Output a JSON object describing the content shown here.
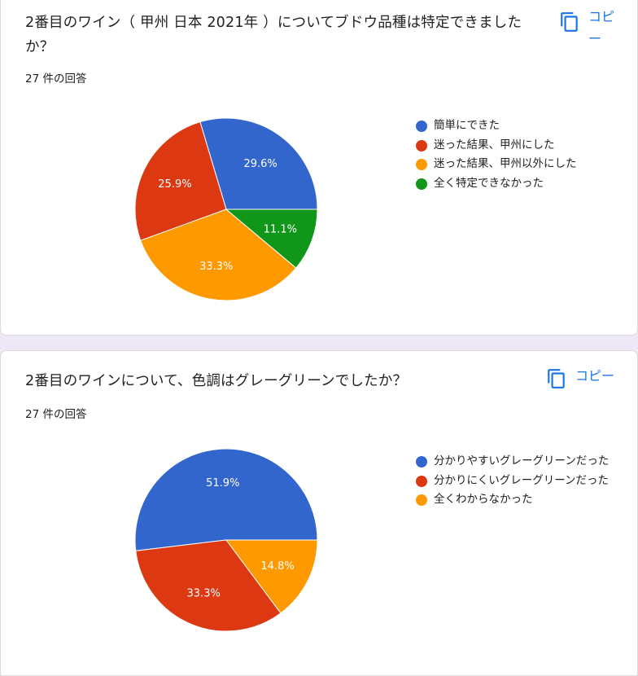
{
  "cards": [
    {
      "title": "2番目のワイン（ 甲州 日本 2021年 ）についてブドウ品種は特定できましたか？",
      "response_count": "27 件の回答",
      "copy_label": "コピー"
    },
    {
      "title": "2番目のワインについて、色調はグレーグリーンでしたか？",
      "response_count": "27 件の回答",
      "copy_label": "コピー"
    }
  ],
  "icons": {
    "copy": "copy-icon"
  },
  "chart_data": [
    {
      "type": "pie",
      "title": "",
      "categories": [
        "簡単にできた",
        "迷った結果、甲州にした",
        "迷った結果、甲州以外にした",
        "全く特定できなかった"
      ],
      "values": [
        29.6,
        25.9,
        33.3,
        11.1
      ],
      "labels": [
        "29.6%",
        "25.9%",
        "33.3%",
        "11.1%"
      ],
      "colors": [
        "#3366cc",
        "#dc3912",
        "#ff9900",
        "#109618"
      ],
      "legend_position": "right"
    },
    {
      "type": "pie",
      "title": "",
      "categories": [
        "分かりやすいグレーグリーンだった",
        "分かりにくいグレーグリーンだった",
        "全くわからなかった"
      ],
      "values": [
        51.9,
        33.3,
        14.8
      ],
      "labels": [
        "51.9%",
        "33.3%",
        "14.8%"
      ],
      "colors": [
        "#3366cc",
        "#dc3912",
        "#ff9900"
      ],
      "legend_position": "right"
    }
  ]
}
